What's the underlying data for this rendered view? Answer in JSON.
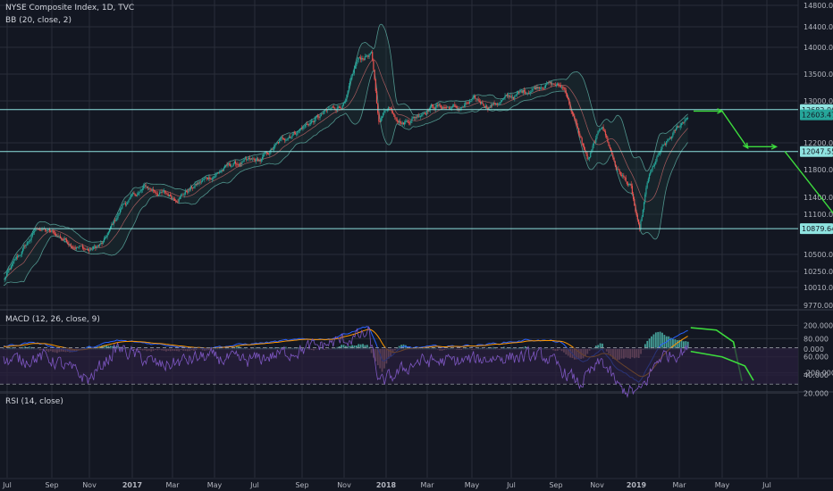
{
  "legends": {
    "title": "NYSE Composite Index, 1D, TVC",
    "bb": "BB (20, close, 2)",
    "macd": "MACD (12, 26, close, 9)",
    "rsi": "RSI (14, close)"
  },
  "colors": {
    "background": "#131722",
    "grid": "#2a2e39",
    "up": "#26a69a",
    "down": "#ef5350",
    "bb_band": "#5fb3a7",
    "bb_fill": "#1f3a3a",
    "level_line": "#8fe3e0",
    "annotation": "#3ddc3d",
    "macd_line": "#2962ff",
    "signal_line": "#ff9800",
    "rsi_line": "#7e57c2",
    "rsi_zone": "#2a1f3d"
  },
  "chart_data": [
    {
      "type": "candlestick",
      "title": "NYSE Composite Index, 1D, TVC",
      "x_ticks": [
        "Jul",
        "Sep",
        "Nov",
        "2017",
        "Mar",
        "May",
        "Jul",
        "Sep",
        "Nov",
        "2018",
        "Mar",
        "May",
        "Jul",
        "Sep",
        "Nov",
        "2019",
        "Mar",
        "May",
        "Jul"
      ],
      "y_ticks": [
        14800.0,
        14400.0,
        14000.0,
        13500.0,
        13000.0,
        12200.0,
        11800.0,
        11400.0,
        11100.0,
        10500.0,
        10250.0,
        10010.0,
        9770.0
      ],
      "price_tags": [
        {
          "label": "12682.063",
          "value": 12682.063,
          "style": "line"
        },
        {
          "label": "12603.470",
          "value": 12603.47,
          "style": "last"
        },
        {
          "label": "12047.554",
          "value": 12047.554,
          "style": "line"
        },
        {
          "label": "10879.643",
          "value": 10879.643,
          "style": "line"
        }
      ],
      "trend_keypoints": [
        {
          "month": 0.0,
          "price": 10100
        },
        {
          "month": 1.2,
          "price": 10900
        },
        {
          "month": 2.0,
          "price": 10750
        },
        {
          "month": 3.0,
          "price": 10550
        },
        {
          "month": 3.5,
          "price": 10650
        },
        {
          "month": 4.2,
          "price": 11250
        },
        {
          "month": 5.0,
          "price": 11500
        },
        {
          "month": 6.0,
          "price": 11350
        },
        {
          "month": 7.0,
          "price": 11600
        },
        {
          "month": 8.0,
          "price": 11850
        },
        {
          "month": 9.0,
          "price": 11900
        },
        {
          "month": 10.0,
          "price": 12300
        },
        {
          "month": 11.0,
          "price": 12550
        },
        {
          "month": 12.0,
          "price": 12800
        },
        {
          "month": 12.4,
          "price": 13400
        },
        {
          "month": 12.9,
          "price": 13550
        },
        {
          "month": 13.15,
          "price": 12500
        },
        {
          "month": 13.5,
          "price": 12750
        },
        {
          "month": 14.0,
          "price": 12500
        },
        {
          "month": 14.5,
          "price": 12600
        },
        {
          "month": 15.0,
          "price": 12750
        },
        {
          "month": 16.0,
          "price": 12700
        },
        {
          "month": 16.5,
          "price": 12800
        },
        {
          "month": 17.0,
          "price": 12750
        },
        {
          "month": 18.0,
          "price": 12900
        },
        {
          "month": 19.0,
          "price": 13100
        },
        {
          "month": 19.7,
          "price": 13000
        },
        {
          "month": 20.0,
          "price": 12550
        },
        {
          "month": 20.5,
          "price": 11900
        },
        {
          "month": 21.0,
          "price": 12450
        },
        {
          "month": 21.5,
          "price": 11800
        },
        {
          "month": 22.0,
          "price": 11500
        },
        {
          "month": 22.3,
          "price": 10800
        },
        {
          "month": 22.6,
          "price": 11600
        },
        {
          "month": 23.0,
          "price": 12000
        },
        {
          "month": 23.5,
          "price": 12300
        },
        {
          "month": 24.0,
          "price": 12600
        }
      ],
      "projection_arrows": [
        [
          {
            "month": 24.2,
            "price": 12660
          },
          {
            "month": 25.2,
            "price": 12660
          }
        ],
        [
          {
            "month": 25.2,
            "price": 12660
          },
          {
            "month": 26.1,
            "price": 12100
          }
        ],
        [
          {
            "month": 26.1,
            "price": 12120
          },
          {
            "month": 27.1,
            "price": 12120
          }
        ],
        [
          {
            "month": 27.4,
            "price": 12050
          },
          {
            "month": 29.4,
            "price": 10950
          }
        ]
      ]
    },
    {
      "type": "histogram",
      "title": "MACD (12, 26, close, 9)",
      "y_ticks": [
        200.0,
        0.0,
        -200.0
      ],
      "macd_keypoints": [
        {
          "month": 0.0,
          "v": 20
        },
        {
          "month": 1.0,
          "v": 60
        },
        {
          "month": 2.5,
          "v": -20
        },
        {
          "month": 4.0,
          "v": 70
        },
        {
          "month": 5.5,
          "v": 40
        },
        {
          "month": 7.0,
          "v": 10
        },
        {
          "month": 8.5,
          "v": 40
        },
        {
          "month": 10.0,
          "v": 70
        },
        {
          "month": 11.5,
          "v": 90
        },
        {
          "month": 12.8,
          "v": 200
        },
        {
          "month": 13.3,
          "v": -110
        },
        {
          "month": 14.0,
          "v": 10
        },
        {
          "month": 15.5,
          "v": 20
        },
        {
          "month": 17.0,
          "v": 40
        },
        {
          "month": 18.5,
          "v": 80
        },
        {
          "month": 19.5,
          "v": 60
        },
        {
          "month": 20.3,
          "v": -120
        },
        {
          "month": 21.0,
          "v": 0
        },
        {
          "month": 21.5,
          "v": -170
        },
        {
          "month": 22.3,
          "v": -280
        },
        {
          "month": 23.0,
          "v": 20
        },
        {
          "month": 24.0,
          "v": 170
        }
      ],
      "projection": [
        {
          "month": 24.1,
          "v": 180
        },
        {
          "month": 25.0,
          "v": 160
        },
        {
          "month": 25.6,
          "v": 60
        },
        {
          "month": 25.9,
          "v": -270
        }
      ]
    },
    {
      "type": "line",
      "title": "RSI (14, close)",
      "y_ticks": [
        80.0,
        60.0,
        40.0,
        20.0
      ],
      "upper_band": 70,
      "lower_band": 30,
      "rsi_keypoints": [
        {
          "month": 0.0,
          "v": 55
        },
        {
          "month": 1.5,
          "v": 60
        },
        {
          "month": 3.0,
          "v": 35
        },
        {
          "month": 4.0,
          "v": 70
        },
        {
          "month": 5.5,
          "v": 50
        },
        {
          "month": 7.0,
          "v": 60
        },
        {
          "month": 8.5,
          "v": 55
        },
        {
          "month": 10.0,
          "v": 65
        },
        {
          "month": 11.5,
          "v": 75
        },
        {
          "month": 12.8,
          "v": 85
        },
        {
          "month": 13.2,
          "v": 30
        },
        {
          "month": 14.5,
          "v": 55
        },
        {
          "month": 16.0,
          "v": 55
        },
        {
          "month": 17.5,
          "v": 60
        },
        {
          "month": 19.0,
          "v": 60
        },
        {
          "month": 20.2,
          "v": 30
        },
        {
          "month": 21.0,
          "v": 55
        },
        {
          "month": 21.6,
          "v": 25
        },
        {
          "month": 22.3,
          "v": 20
        },
        {
          "month": 23.0,
          "v": 60
        },
        {
          "month": 24.0,
          "v": 68
        }
      ],
      "projection": [
        {
          "month": 24.1,
          "v": 66
        },
        {
          "month": 25.2,
          "v": 60
        },
        {
          "month": 26.0,
          "v": 50
        },
        {
          "month": 26.3,
          "v": 34
        }
      ]
    }
  ]
}
